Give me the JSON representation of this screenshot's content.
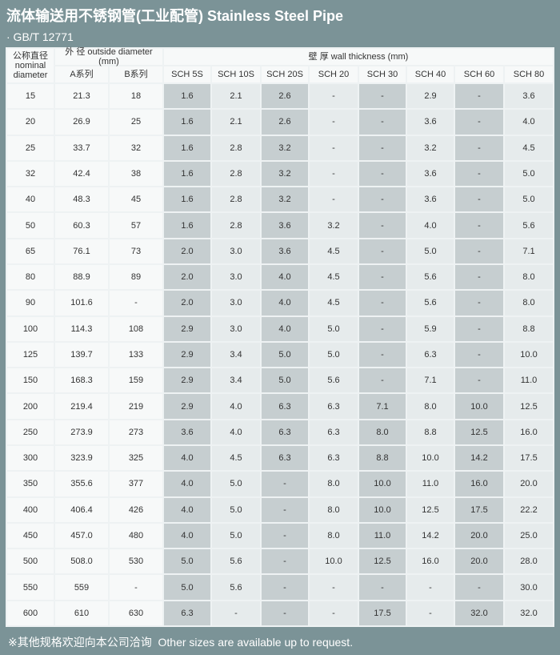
{
  "title": "流体输送用不锈钢管(工业配管) Stainless Steel Pipe",
  "standard": "· GB/T 12771",
  "table": {
    "header": {
      "nominal_diameter": [
        "公称直径",
        "nominal",
        "diameter"
      ],
      "outside_diameter": "外 径 outside diameter (mm)",
      "series": [
        "A系列",
        "B系列"
      ],
      "wall_thickness": "壁 厚 wall thickness (mm)",
      "schedules": [
        "SCH 5S",
        "SCH 10S",
        "SCH 20S",
        "SCH 20",
        "SCH 30",
        "SCH 40",
        "SCH 60",
        "SCH 80"
      ]
    },
    "rows": [
      [
        "15",
        "21.3",
        "18",
        "1.6",
        "2.1",
        "2.6",
        "-",
        "-",
        "2.9",
        "-",
        "3.6"
      ],
      [
        "20",
        "26.9",
        "25",
        "1.6",
        "2.1",
        "2.6",
        "-",
        "-",
        "3.6",
        "-",
        "4.0"
      ],
      [
        "25",
        "33.7",
        "32",
        "1.6",
        "2.8",
        "3.2",
        "-",
        "-",
        "3.2",
        "-",
        "4.5"
      ],
      [
        "32",
        "42.4",
        "38",
        "1.6",
        "2.8",
        "3.2",
        "-",
        "-",
        "3.6",
        "-",
        "5.0"
      ],
      [
        "40",
        "48.3",
        "45",
        "1.6",
        "2.8",
        "3.2",
        "-",
        "-",
        "3.6",
        "-",
        "5.0"
      ],
      [
        "50",
        "60.3",
        "57",
        "1.6",
        "2.8",
        "3.6",
        "3.2",
        "-",
        "4.0",
        "-",
        "5.6"
      ],
      [
        "65",
        "76.1",
        "73",
        "2.0",
        "3.0",
        "3.6",
        "4.5",
        "-",
        "5.0",
        "-",
        "7.1"
      ],
      [
        "80",
        "88.9",
        "89",
        "2.0",
        "3.0",
        "4.0",
        "4.5",
        "-",
        "5.6",
        "-",
        "8.0"
      ],
      [
        "90",
        "101.6",
        "-",
        "2.0",
        "3.0",
        "4.0",
        "4.5",
        "-",
        "5.6",
        "-",
        "8.0"
      ],
      [
        "100",
        "114.3",
        "108",
        "2.9",
        "3.0",
        "4.0",
        "5.0",
        "-",
        "5.9",
        "-",
        "8.8"
      ],
      [
        "125",
        "139.7",
        "133",
        "2.9",
        "3.4",
        "5.0",
        "5.0",
        "-",
        "6.3",
        "-",
        "10.0"
      ],
      [
        "150",
        "168.3",
        "159",
        "2.9",
        "3.4",
        "5.0",
        "5.6",
        "-",
        "7.1",
        "-",
        "11.0"
      ],
      [
        "200",
        "219.4",
        "219",
        "2.9",
        "4.0",
        "6.3",
        "6.3",
        "7.1",
        "8.0",
        "10.0",
        "12.5"
      ],
      [
        "250",
        "273.9",
        "273",
        "3.6",
        "4.0",
        "6.3",
        "6.3",
        "8.0",
        "8.8",
        "12.5",
        "16.0"
      ],
      [
        "300",
        "323.9",
        "325",
        "4.0",
        "4.5",
        "6.3",
        "6.3",
        "8.8",
        "10.0",
        "14.2",
        "17.5"
      ],
      [
        "350",
        "355.6",
        "377",
        "4.0",
        "5.0",
        "-",
        "8.0",
        "10.0",
        "11.0",
        "16.0",
        "20.0"
      ],
      [
        "400",
        "406.4",
        "426",
        "4.0",
        "5.0",
        "-",
        "8.0",
        "10.0",
        "12.5",
        "17.5",
        "22.2"
      ],
      [
        "450",
        "457.0",
        "480",
        "4.0",
        "5.0",
        "-",
        "8.0",
        "11.0",
        "14.2",
        "20.0",
        "25.0"
      ],
      [
        "500",
        "508.0",
        "530",
        "5.0",
        "5.6",
        "-",
        "10.0",
        "12.5",
        "16.0",
        "20.0",
        "28.0"
      ],
      [
        "550",
        "559",
        "-",
        "5.0",
        "5.6",
        "-",
        "-",
        "-",
        "-",
        "-",
        "30.0"
      ],
      [
        "600",
        "610",
        "630",
        "6.3",
        "-",
        "-",
        "-",
        "17.5",
        "-",
        "32.0",
        "32.0"
      ]
    ]
  },
  "footer": "※其他规格欢迎向本公司洽询  Other sizes are available up to request."
}
